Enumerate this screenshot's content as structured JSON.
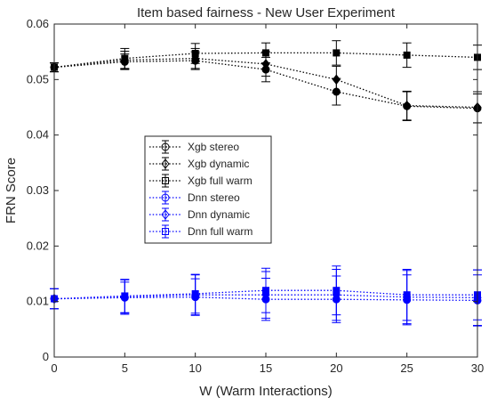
{
  "chart_data": {
    "type": "line",
    "title": "Item based fairness - New User Experiment",
    "xlabel": "W (Warm Interactions)",
    "ylabel": "FRN Score",
    "xlim": [
      0,
      30
    ],
    "ylim": [
      0,
      0.06
    ],
    "x": [
      0,
      5,
      10,
      15,
      20,
      25,
      30
    ],
    "x_ticks": [
      0,
      5,
      10,
      15,
      20,
      25,
      30
    ],
    "x_tick_labels": [
      "0",
      "5",
      "10",
      "15",
      "20",
      "25",
      "30"
    ],
    "y_ticks": [
      0,
      0.01,
      0.02,
      0.03,
      0.04,
      0.05,
      0.06
    ],
    "y_tick_labels": [
      "0",
      "0.01",
      "0.02",
      "0.03",
      "0.04",
      "0.05",
      "0.06"
    ],
    "grid": false,
    "legend_position": "center-left",
    "series": [
      {
        "name": "Xgb stereo",
        "color": "#000000",
        "marker": "circle",
        "values": [
          0.0522,
          0.0532,
          0.0534,
          0.0518,
          0.0478,
          0.0452,
          0.0448
        ],
        "errors": [
          0.0008,
          0.0014,
          0.0016,
          0.0022,
          0.0024,
          0.0026,
          0.0026
        ]
      },
      {
        "name": "Xgb dynamic",
        "color": "#000000",
        "marker": "diamond",
        "values": [
          0.0522,
          0.0535,
          0.0538,
          0.0528,
          0.05,
          0.0453,
          0.045
        ],
        "errors": [
          0.0008,
          0.0016,
          0.0018,
          0.0022,
          0.0024,
          0.0026,
          0.0028
        ]
      },
      {
        "name": "Xgb full warm",
        "color": "#000000",
        "marker": "square",
        "values": [
          0.0522,
          0.0538,
          0.0547,
          0.0548,
          0.0548,
          0.0544,
          0.054
        ],
        "errors": [
          0.0008,
          0.0018,
          0.0018,
          0.0018,
          0.0022,
          0.0022,
          0.0022
        ]
      },
      {
        "name": "Dnn stereo",
        "color": "#0000ff",
        "marker": "circle",
        "values": [
          0.0105,
          0.0107,
          0.0108,
          0.0104,
          0.0104,
          0.0103,
          0.0102
        ],
        "errors": [
          0.0018,
          0.0028,
          0.0033,
          0.0038,
          0.0042,
          0.0045,
          0.0046
        ]
      },
      {
        "name": "Dnn dynamic",
        "color": "#0000ff",
        "marker": "diamond",
        "values": [
          0.0105,
          0.0108,
          0.0112,
          0.0112,
          0.0112,
          0.0108,
          0.0107
        ],
        "errors": [
          0.0018,
          0.0031,
          0.0036,
          0.0042,
          0.0046,
          0.0048,
          0.005
        ]
      },
      {
        "name": "Dnn full warm",
        "color": "#0000ff",
        "marker": "square",
        "values": [
          0.0105,
          0.011,
          0.0114,
          0.012,
          0.012,
          0.0112,
          0.0112
        ],
        "errors": [
          0.0018,
          0.003,
          0.0035,
          0.004,
          0.0044,
          0.0046,
          0.0045
        ]
      }
    ]
  }
}
